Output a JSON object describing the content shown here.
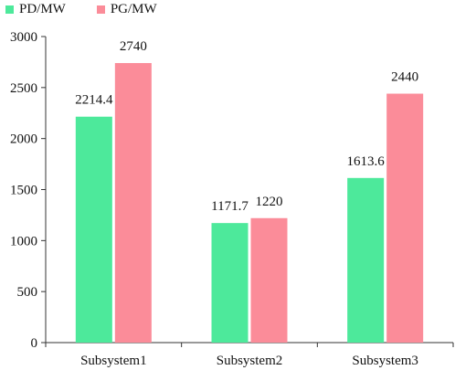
{
  "chart_data": {
    "type": "bar",
    "categories": [
      "Subsystem1",
      "Subsystem2",
      "Subsystem3"
    ],
    "series": [
      {
        "name": "PD/MW",
        "values": [
          2214.4,
          1171.7,
          1613.6
        ],
        "labels": [
          "2214.4",
          "1171.7",
          "1613.6"
        ],
        "color": "#4de99b"
      },
      {
        "name": "PG/MW",
        "values": [
          2740,
          1220,
          2440
        ],
        "labels": [
          "2740",
          "1220",
          "2440"
        ],
        "color": "#fb8c99"
      }
    ],
    "ylim": [
      0,
      3000
    ],
    "yticks": [
      0,
      500,
      1000,
      1500,
      2000,
      2500,
      3000
    ],
    "ytick_labels": [
      "0",
      "500",
      "1000",
      "1500",
      "2000",
      "2500",
      "3000"
    ],
    "grid": false,
    "legend_position": "top-left"
  }
}
